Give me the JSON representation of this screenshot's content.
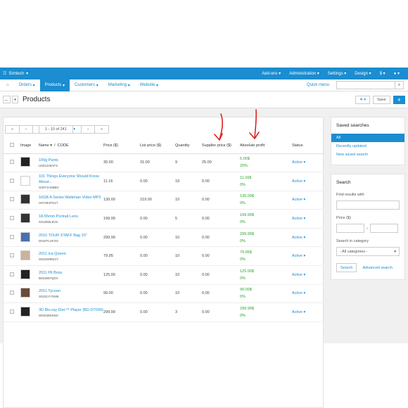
{
  "topbar": {
    "brand": "Simtech",
    "menus": [
      "Add-ons",
      "Administration",
      "Settings",
      "Design",
      "$"
    ]
  },
  "nav": {
    "tabs": [
      "Orders",
      "Products",
      "Customers",
      "Marketing",
      "Website"
    ],
    "active_tab": "Products",
    "quick_menu": "Quick menu"
  },
  "page": {
    "title": "Products",
    "save_label": "Save",
    "plus_label": "+"
  },
  "pagination": {
    "first": "«",
    "prev": "‹",
    "range": "1 - 10 of 241",
    "next": "›",
    "last": "»"
  },
  "table": {
    "headers": {
      "image": "Image",
      "name": "Name",
      "sort_sep": "/",
      "code": "CODE",
      "price": "Price ($)",
      "list_price": "List price ($)",
      "quantity": "Quantity",
      "supplier_price": "Supplier price ($)",
      "absolute_profit": "Absolute profit",
      "status": "Status"
    },
    "rows": [
      {
        "name": "100g Pants",
        "code": "U001225AFS",
        "price": "30.00",
        "list_price": "31.00",
        "quantity": "9",
        "supplier_price": "25.00",
        "profit": "5.00$",
        "profit_pct": "20%",
        "status": "Active"
      },
      {
        "name": "101 Things Everyone Should Know About...",
        "code": "G0071HSBBV",
        "price": "11.16",
        "list_price": "0.00",
        "quantity": "19",
        "supplier_price": "0.00",
        "profit": "11.16$",
        "profit_pct": "0%",
        "status": "Active"
      },
      {
        "name": "16GB A Series Walkman Video MP3",
        "code": "H0748VPS1T",
        "price": "130.00",
        "list_price": "219.00",
        "quantity": "10",
        "supplier_price": "0.00",
        "profit": "130.00$",
        "profit_pct": "0%",
        "status": "Active"
      },
      {
        "name": "18-55mm Portrait Lens",
        "code": "G0180ZL8VS",
        "price": "199.99",
        "list_price": "0.00",
        "quantity": "5",
        "supplier_price": "0.00",
        "profit": "199.99$",
        "profit_pct": "0%",
        "status": "Active"
      },
      {
        "name": "2010 TOUR STAFF Bag 10\"",
        "code": "D018TLXFZG",
        "price": "299.99",
        "list_price": "0.00",
        "quantity": "10",
        "supplier_price": "0.00",
        "profit": "299.99$",
        "profit_pct": "0%",
        "status": "Active"
      },
      {
        "name": "2011 Ica Queen",
        "code": "S0232MRZ1Y",
        "price": "79.95",
        "list_price": "0.00",
        "quantity": "10",
        "supplier_price": "0.00",
        "profit": "79.95$",
        "profit_pct": "0%",
        "status": "Active"
      },
      {
        "name": "2011 Pit Boss",
        "code": "B023657QDV",
        "price": "125.00",
        "list_price": "0.00",
        "quantity": "10",
        "supplier_price": "0.00",
        "profit": "125.00$",
        "profit_pct": "0%",
        "status": "Active"
      },
      {
        "name": "2011 Tycoon",
        "code": "S0231YYSMK",
        "price": "99.00",
        "list_price": "0.00",
        "quantity": "10",
        "supplier_price": "0.00",
        "profit": "99.00$",
        "profit_pct": "0%",
        "status": "Active"
      },
      {
        "name": "3D Blu-ray Disc™ Player (BD-D7000)",
        "code": "W0018WS94I",
        "price": "299.99",
        "list_price": "0.00",
        "quantity": "3",
        "supplier_price": "0.00",
        "profit": "299.99$",
        "profit_pct": "0%",
        "status": "Active"
      }
    ]
  },
  "sidebar": {
    "saved": {
      "title": "Saved searches",
      "items": [
        "All",
        "Recently updated",
        "New saved search"
      ]
    },
    "search": {
      "title": "Search",
      "find_label": "Find results with",
      "price_label": "Price ($)",
      "price_sep": "-",
      "category_label": "Search in category",
      "category_value": "- All categories -",
      "search_button": "Search",
      "advanced_link": "Advanced search"
    }
  },
  "colors": {
    "accent": "#1b8dd0",
    "profit": "#2aa22a",
    "annotation": "#e02020"
  }
}
